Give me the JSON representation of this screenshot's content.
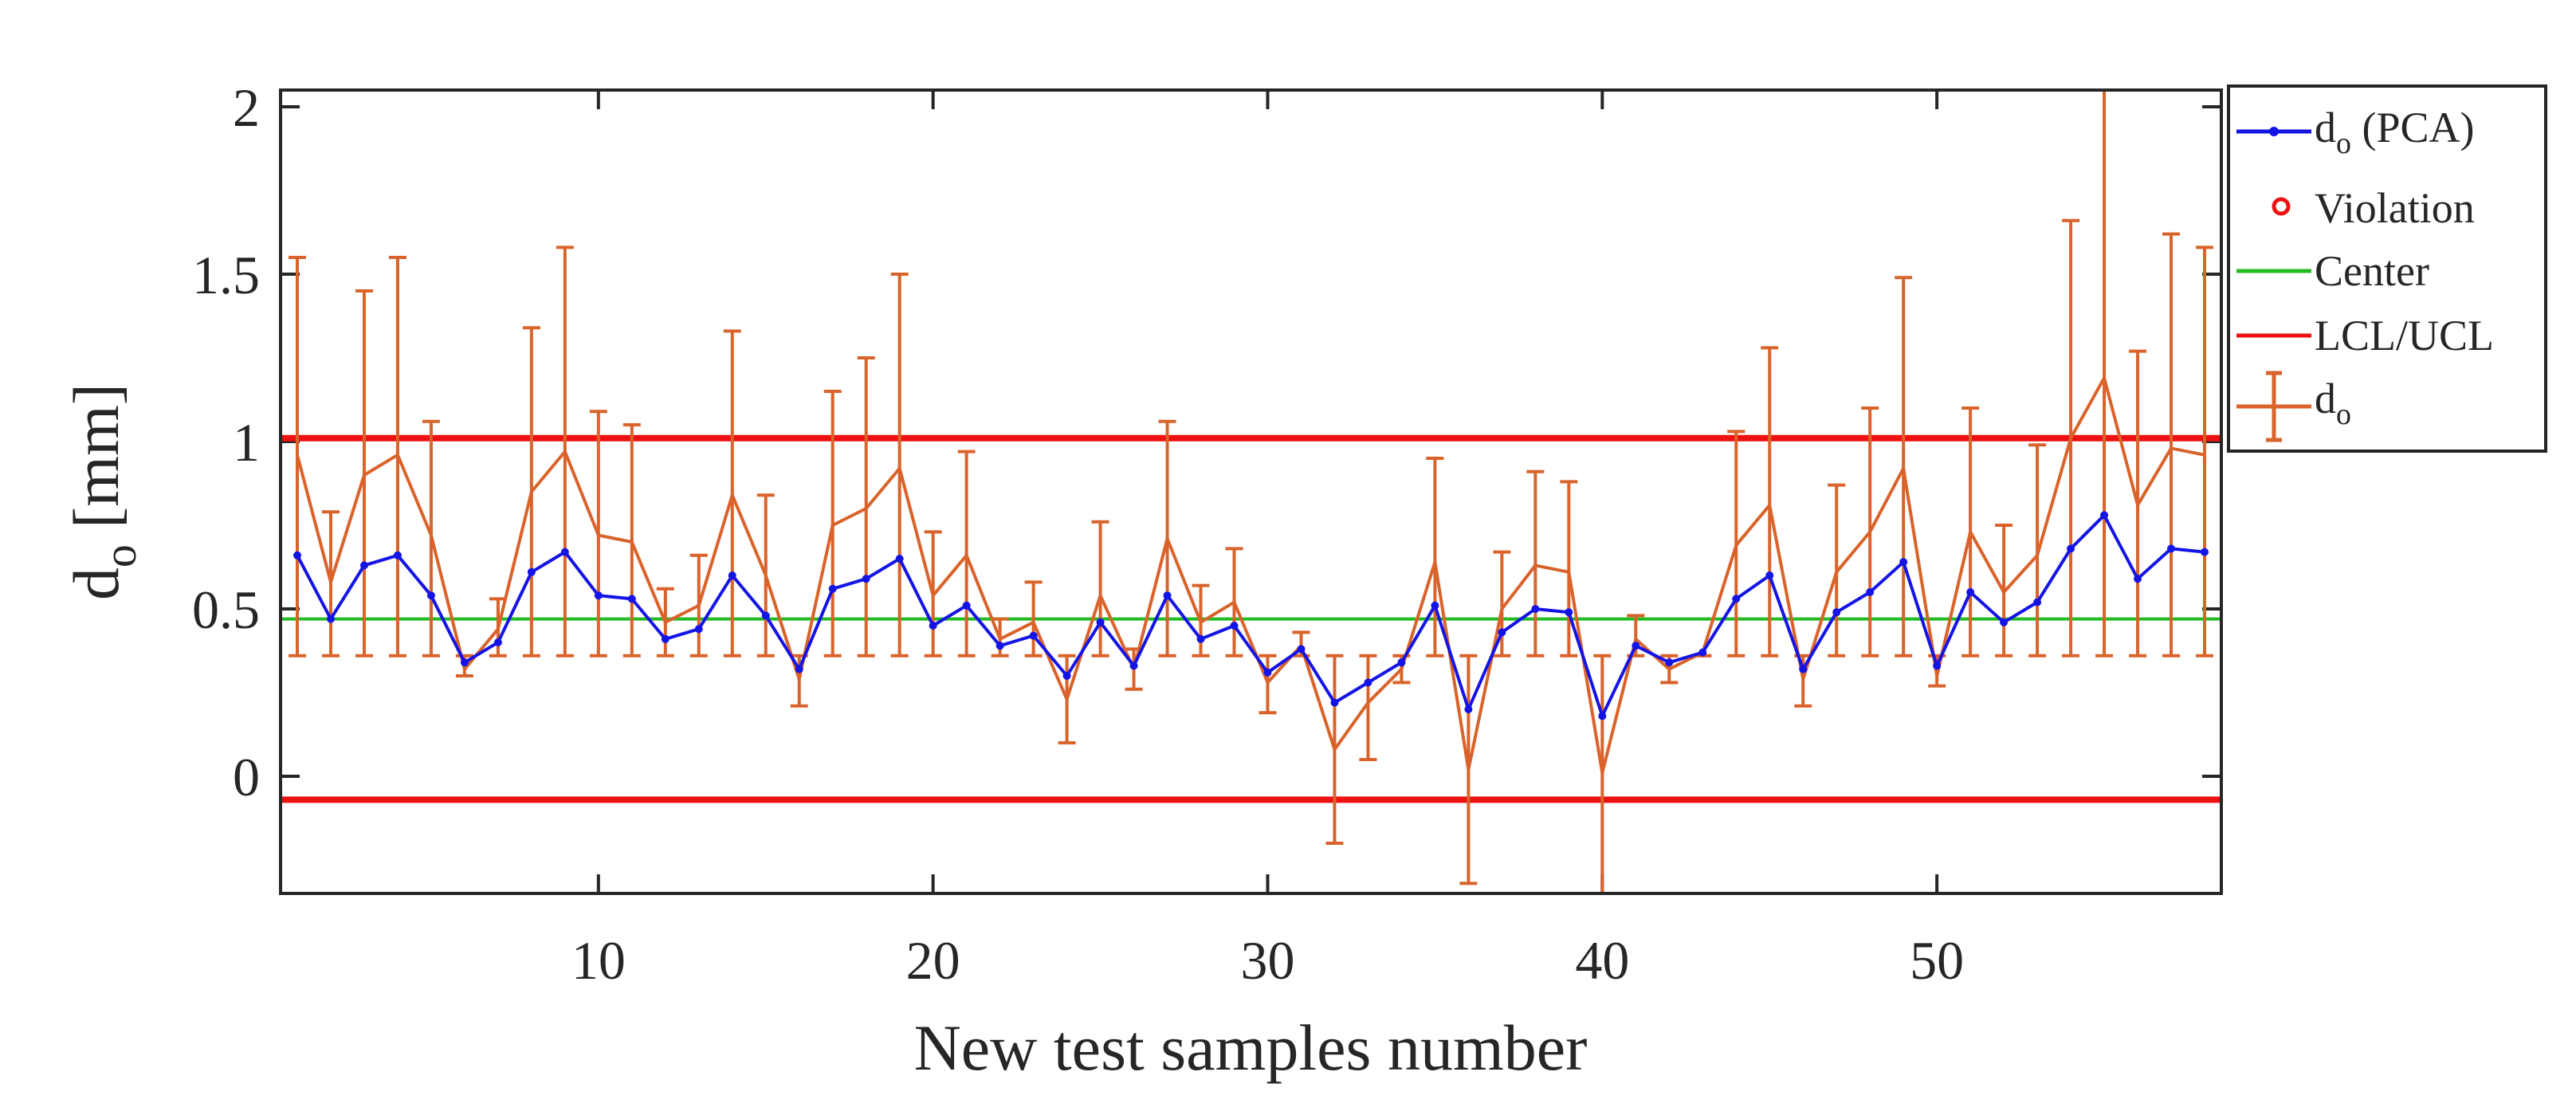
{
  "chart_data": {
    "type": "line",
    "title": "",
    "xlabel": "New test samples number",
    "ylabel": {
      "main": "d",
      "sub": "o",
      "unit": "[mm]"
    },
    "xlim": [
      0.5,
      58.5
    ],
    "ylim": [
      -0.35,
      2.05
    ],
    "xticks": [
      10,
      20,
      30,
      40,
      50
    ],
    "yticks": [
      0,
      0.5,
      1,
      1.5,
      2
    ],
    "ytick_labels": [
      "0",
      "0.5",
      "1",
      "1.5",
      "2"
    ],
    "legend_position": "top-right-outside",
    "legend": [
      {
        "key": "pca",
        "main": "d",
        "sub": "o",
        "rest": " (PCA)"
      },
      {
        "key": "violation",
        "main": "Violation",
        "sub": "",
        "rest": ""
      },
      {
        "key": "center",
        "main": "Center",
        "sub": "",
        "rest": ""
      },
      {
        "key": "limits",
        "main": "LCL/UCL",
        "sub": "",
        "rest": ""
      },
      {
        "key": "do",
        "main": "d",
        "sub": "o",
        "rest": ""
      }
    ],
    "center": 0.47,
    "lcl": -0.07,
    "ucl": 1.01,
    "x": [
      1,
      2,
      3,
      4,
      5,
      6,
      7,
      8,
      9,
      10,
      11,
      12,
      13,
      14,
      15,
      16,
      17,
      18,
      19,
      20,
      21,
      22,
      23,
      24,
      25,
      26,
      27,
      28,
      29,
      30,
      31,
      32,
      33,
      34,
      35,
      36,
      37,
      38,
      39,
      40,
      41,
      42,
      43,
      44,
      45,
      46,
      47,
      48,
      49,
      50,
      51,
      52,
      53,
      54,
      55,
      56,
      57,
      58
    ],
    "pca_values": [
      0.66,
      0.47,
      0.63,
      0.66,
      0.54,
      0.34,
      0.4,
      0.61,
      0.67,
      0.54,
      0.53,
      0.41,
      0.44,
      0.6,
      0.48,
      0.32,
      0.56,
      0.59,
      0.65,
      0.45,
      0.51,
      0.39,
      0.42,
      0.3,
      0.46,
      0.33,
      0.54,
      0.41,
      0.45,
      0.31,
      0.38,
      0.22,
      0.28,
      0.34,
      0.51,
      0.2,
      0.43,
      0.5,
      0.49,
      0.18,
      0.39,
      0.34,
      0.37,
      0.53,
      0.6,
      0.32,
      0.49,
      0.55,
      0.64,
      0.33,
      0.55,
      0.46,
      0.52,
      0.68,
      0.78,
      0.59,
      0.68,
      0.67
    ],
    "do_values": [
      0.96,
      0.58,
      0.9,
      0.96,
      0.72,
      0.32,
      0.44,
      0.85,
      0.97,
      0.72,
      0.7,
      0.46,
      0.51,
      0.84,
      0.6,
      0.29,
      0.75,
      0.8,
      0.92,
      0.54,
      0.66,
      0.41,
      0.46,
      0.23,
      0.54,
      0.32,
      0.71,
      0.46,
      0.52,
      0.28,
      0.39,
      0.08,
      0.22,
      0.32,
      0.64,
      0.02,
      0.5,
      0.63,
      0.61,
      0.01,
      0.41,
      0.32,
      0.37,
      0.69,
      0.81,
      0.29,
      0.61,
      0.73,
      0.92,
      0.3,
      0.73,
      0.55,
      0.66,
      1.01,
      1.19,
      0.81,
      0.98,
      0.96
    ],
    "do_upper": [
      1.55,
      0.79,
      1.45,
      1.55,
      1.06,
      0.36,
      0.53,
      1.34,
      1.58,
      1.09,
      1.05,
      0.56,
      0.66,
      1.33,
      0.84,
      0.36,
      1.15,
      1.25,
      1.5,
      0.73,
      0.97,
      0.47,
      0.58,
      0.36,
      0.76,
      0.38,
      1.06,
      0.57,
      0.68,
      0.36,
      0.43,
      0.36,
      0.36,
      0.36,
      0.95,
      0.36,
      0.67,
      0.91,
      0.88,
      0.36,
      0.48,
      0.36,
      0.36,
      1.03,
      1.28,
      0.36,
      0.87,
      1.1,
      1.49,
      0.36,
      1.1,
      0.75,
      0.99,
      1.66,
      2.05,
      1.27,
      1.62,
      1.58
    ],
    "do_lower": [
      0.36,
      0.36,
      0.36,
      0.36,
      0.36,
      0.3,
      0.36,
      0.36,
      0.36,
      0.36,
      0.36,
      0.36,
      0.36,
      0.36,
      0.36,
      0.21,
      0.36,
      0.36,
      0.36,
      0.36,
      0.36,
      0.36,
      0.36,
      0.1,
      0.36,
      0.26,
      0.36,
      0.36,
      0.36,
      0.19,
      0.36,
      -0.2,
      0.05,
      0.28,
      0.36,
      -0.32,
      0.36,
      0.36,
      0.36,
      -0.35,
      0.36,
      0.28,
      0.36,
      0.36,
      0.36,
      0.21,
      0.36,
      0.36,
      0.36,
      0.27,
      0.36,
      0.36,
      0.36,
      0.36,
      0.36,
      0.36,
      0.36,
      0.36
    ],
    "violations": []
  },
  "colors": {
    "pca": "#1414e6",
    "do": "#d9632b",
    "center": "#22bb22",
    "limits": "#ee1111",
    "violation": "#ee1111",
    "axes": "#262626"
  }
}
